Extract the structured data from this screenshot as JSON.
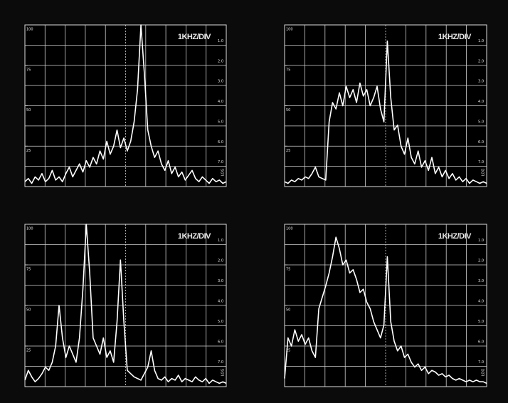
{
  "chart_data": [
    {
      "type": "line",
      "label": "1KHZ/DIV",
      "ylim": [
        0,
        100
      ],
      "yticks": [
        25,
        50,
        75,
        100
      ],
      "y2lim": [
        8,
        0
      ],
      "y2ticks": [
        {
          "value": 1,
          "label": "1.0"
        },
        {
          "value": 2,
          "label": "2.0"
        },
        {
          "value": 3,
          "label": "3.0"
        },
        {
          "value": 4,
          "label": "4.0"
        },
        {
          "value": 5,
          "label": "5.0"
        },
        {
          "value": 6,
          "label": "6.0"
        },
        {
          "value": 7,
          "label": "7.0"
        }
      ],
      "y2_label": "LOG",
      "grid": true,
      "series": [
        {
          "color": "#ffffff",
          "values": [
            3,
            5,
            2,
            6,
            4,
            8,
            3,
            5,
            10,
            4,
            6,
            3,
            8,
            12,
            6,
            10,
            14,
            9,
            16,
            12,
            18,
            14,
            22,
            17,
            28,
            20,
            25,
            35,
            24,
            30,
            22,
            28,
            40,
            60,
            100,
            70,
            35,
            25,
            18,
            22,
            14,
            10,
            16,
            8,
            12,
            6,
            9,
            4,
            7,
            10,
            5,
            3,
            6,
            4,
            2,
            5,
            3,
            4,
            2,
            3
          ]
        }
      ]
    },
    {
      "type": "line",
      "label": "1KHZ/DIV",
      "ylim": [
        0,
        100
      ],
      "yticks": [
        25,
        50,
        75,
        100
      ],
      "y2lim": [
        8,
        0
      ],
      "y2ticks": [
        {
          "value": 1,
          "label": "1.0"
        },
        {
          "value": 2,
          "label": "2.0"
        },
        {
          "value": 3,
          "label": "3.0"
        },
        {
          "value": 4,
          "label": "4.0"
        },
        {
          "value": 5,
          "label": "5.0"
        },
        {
          "value": 6,
          "label": "6.0"
        },
        {
          "value": 7,
          "label": "7.0"
        }
      ],
      "y2_label": "LOG",
      "grid": true,
      "series": [
        {
          "color": "#ffffff",
          "values": [
            3,
            2,
            4,
            3,
            5,
            4,
            6,
            5,
            8,
            12,
            6,
            5,
            4,
            40,
            52,
            48,
            58,
            50,
            62,
            55,
            60,
            52,
            64,
            56,
            60,
            50,
            55,
            62,
            48,
            40,
            90,
            55,
            35,
            38,
            25,
            20,
            30,
            18,
            14,
            22,
            12,
            16,
            10,
            18,
            8,
            12,
            6,
            10,
            5,
            8,
            4,
            6,
            3,
            5,
            2,
            4,
            3,
            2,
            3,
            2
          ]
        }
      ]
    },
    {
      "type": "line",
      "label": "1KHZ/DIV",
      "ylim": [
        0,
        100
      ],
      "yticks": [
        25,
        50,
        75,
        100
      ],
      "y2lim": [
        8,
        0
      ],
      "y2ticks": [
        {
          "value": 1,
          "label": "1.0"
        },
        {
          "value": 2,
          "label": "2.0"
        },
        {
          "value": 3,
          "label": "3.0"
        },
        {
          "value": 4,
          "label": "4.0"
        },
        {
          "value": 5,
          "label": "5.0"
        },
        {
          "value": 6,
          "label": "6.0"
        },
        {
          "value": 7,
          "label": "7.0"
        }
      ],
      "y2_label": "LOG",
      "grid": true,
      "series": [
        {
          "color": "#ffffff",
          "values": [
            4,
            10,
            6,
            3,
            5,
            8,
            12,
            10,
            15,
            25,
            50,
            30,
            18,
            25,
            20,
            15,
            30,
            60,
            100,
            70,
            30,
            25,
            20,
            30,
            18,
            22,
            15,
            40,
            78,
            40,
            10,
            8,
            6,
            5,
            4,
            8,
            12,
            22,
            10,
            5,
            4,
            6,
            3,
            5,
            4,
            7,
            3,
            5,
            4,
            3,
            6,
            4,
            3,
            5,
            2,
            4,
            3,
            2,
            3,
            2
          ]
        }
      ]
    },
    {
      "type": "line",
      "label": "1KHZ/DIV",
      "ylim": [
        0,
        100
      ],
      "yticks": [
        25,
        50,
        75,
        100
      ],
      "y2lim": [
        8,
        0
      ],
      "y2ticks": [
        {
          "value": 1,
          "label": "1.0"
        },
        {
          "value": 2,
          "label": "2.0"
        },
        {
          "value": 3,
          "label": "3.0"
        },
        {
          "value": 4,
          "label": "4.0"
        },
        {
          "value": 5,
          "label": "5.0"
        },
        {
          "value": 6,
          "label": "6.0"
        },
        {
          "value": 7,
          "label": "7.0"
        }
      ],
      "y2_label": "LOG",
      "grid": true,
      "series": [
        {
          "color": "#ffffff",
          "values": [
            5,
            30,
            25,
            35,
            28,
            32,
            26,
            30,
            22,
            18,
            48,
            55,
            62,
            70,
            80,
            92,
            85,
            75,
            78,
            70,
            72,
            66,
            58,
            60,
            52,
            48,
            40,
            35,
            30,
            38,
            80,
            40,
            28,
            22,
            25,
            18,
            20,
            15,
            12,
            14,
            10,
            12,
            8,
            10,
            9,
            7,
            8,
            6,
            7,
            5,
            4,
            5,
            4,
            3,
            4,
            3,
            4,
            3,
            3,
            2
          ]
        }
      ]
    }
  ]
}
